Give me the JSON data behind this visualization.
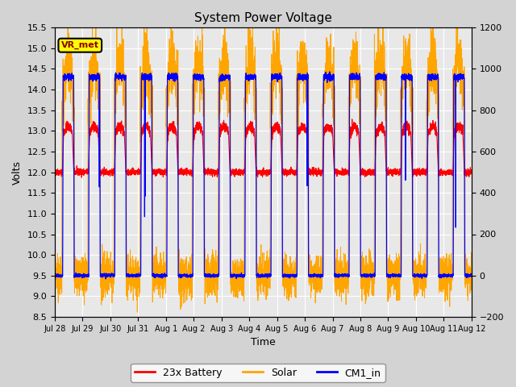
{
  "title": "System Power Voltage",
  "xlabel": "Time",
  "ylabel_left": "Volts",
  "ylabel_right": "",
  "ylim_left": [
    8.5,
    15.5
  ],
  "ylim_right": [
    -200,
    1200
  ],
  "background_color": "#d3d3d3",
  "plot_bg_color": "#e8e8e8",
  "grid_color": "white",
  "annotation_label": "VR_met",
  "legend_entries": [
    "23x Battery",
    "Solar",
    "CM1_in"
  ],
  "legend_colors": [
    "red",
    "orange",
    "blue"
  ],
  "xtick_labels": [
    "Jul 28",
    "Jul 29",
    "Jul 30",
    "Jul 31",
    "Aug 1",
    "Aug 2",
    "Aug 3",
    "Aug 4",
    "Aug 5",
    "Aug 6",
    "Aug 7",
    "Aug 8",
    "Aug 9",
    "Aug 10",
    "Aug 11",
    "Aug 12"
  ],
  "yticks_left": [
    8.5,
    9.0,
    9.5,
    10.0,
    10.5,
    11.0,
    11.5,
    12.0,
    12.5,
    13.0,
    13.5,
    14.0,
    14.5,
    15.0,
    15.5
  ],
  "yticks_right": [
    -200,
    0,
    200,
    400,
    600,
    800,
    1000,
    1200
  ],
  "num_days": 16,
  "seed": 42
}
